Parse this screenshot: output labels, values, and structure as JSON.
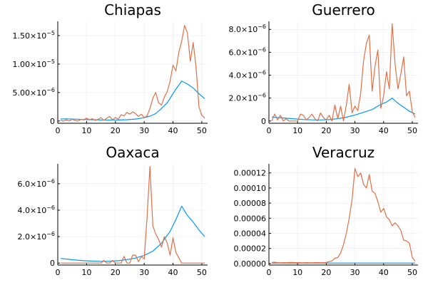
{
  "colors": {
    "series_1": "#009af9",
    "series_2": "#e26f46"
  },
  "chart_data": [
    {
      "type": "line",
      "title": "Chiapas",
      "xlim": [
        0,
        52
      ],
      "ylim": [
        -4e-07,
        1.75e-05
      ],
      "xticks": [
        0,
        10,
        20,
        30,
        40,
        50
      ],
      "xtick_labels": [
        "0",
        "10",
        "20",
        "30",
        "40",
        "50"
      ],
      "yticks": [
        0,
        5e-06,
        1e-05,
        1.5e-05
      ],
      "ytick_labels": [
        {
          "mant": "0",
          "exp": ""
        },
        {
          "mant": "5.00×10",
          "exp": "−6"
        },
        {
          "mant": "1.00×10",
          "exp": "−5"
        },
        {
          "mant": "1.50×10",
          "exp": "−5"
        }
      ],
      "grid": true,
      "series": [
        {
          "x": [
            1,
            3,
            6,
            9,
            12,
            15,
            18,
            21,
            24,
            27,
            30,
            32,
            34,
            36,
            38,
            40,
            41,
            43,
            45,
            47,
            49,
            51
          ],
          "values": [
            3.5e-07,
            3.8e-07,
            3.2e-07,
            2.6e-07,
            2.2e-07,
            1.8e-07,
            1.6e-07,
            1.7e-07,
            2.2e-07,
            3.4e-07,
            5.8e-07,
            8.5e-07,
            1.3e-06,
            2.2e-06,
            3.2e-06,
            4.8e-06,
            5.6e-06,
            7e-06,
            6.5e-06,
            5.8e-06,
            4.8e-06,
            3.9e-06
          ]
        },
        {
          "x": [
            1,
            2,
            3,
            4,
            5,
            6,
            7,
            8,
            9,
            10,
            11,
            12,
            13,
            14,
            15,
            16,
            17,
            18,
            19,
            20,
            21,
            22,
            23,
            24,
            25,
            26,
            27,
            28,
            29,
            30,
            31,
            32,
            33,
            34,
            35,
            36,
            37,
            38,
            39,
            40,
            41,
            42,
            43,
            44,
            45,
            46,
            47,
            48,
            49,
            50,
            51
          ],
          "values": [
            1e-07,
            0,
            2e-07,
            0,
            3e-07,
            1e-07,
            0,
            3e-07,
            2e-07,
            5e-07,
            2e-07,
            4e-07,
            1e-07,
            3e-07,
            6e-07,
            1e-07,
            5e-07,
            8e-07,
            2e-07,
            6e-07,
            3e-07,
            1.1e-06,
            9e-07,
            1.5e-06,
            1.2e-06,
            1.6e-06,
            1.3e-06,
            8e-07,
            1.2e-06,
            6e-07,
            9e-07,
            2.2e-06,
            4e-06,
            5e-06,
            3.2e-06,
            2.8e-06,
            4.2e-06,
            5.2e-06,
            7e-06,
            9.8e-06,
            8.8e-06,
            1.2e-05,
            1.4e-05,
            1.68e-05,
            1.55e-05,
            1.05e-05,
            1.38e-05,
            9.5e-06,
            2.5e-06,
            1e-06,
            5e-07
          ]
        }
      ]
    },
    {
      "type": "line",
      "title": "Guerrero",
      "xlim": [
        0,
        52
      ],
      "ylim": [
        -2e-07,
        8.7e-06
      ],
      "xticks": [
        0,
        10,
        20,
        30,
        40,
        50
      ],
      "xtick_labels": [
        "0",
        "10",
        "20",
        "30",
        "40",
        "50"
      ],
      "yticks": [
        0,
        2e-06,
        4e-06,
        6e-06,
        8e-06
      ],
      "ytick_labels": [
        {
          "mant": "0",
          "exp": ""
        },
        {
          "mant": "2.0×10",
          "exp": "−6"
        },
        {
          "mant": "4.0×10",
          "exp": "−6"
        },
        {
          "mant": "6.0×10",
          "exp": "−6"
        },
        {
          "mant": "8.0×10",
          "exp": "−6"
        }
      ],
      "grid": true,
      "series": [
        {
          "x": [
            1,
            3,
            6,
            9,
            12,
            15,
            18,
            21,
            24,
            27,
            30,
            33,
            36,
            39,
            41,
            43,
            45,
            47,
            49,
            51
          ],
          "values": [
            3.5e-07,
            3e-07,
            2.4e-07,
            1.8e-07,
            1.3e-07,
            1e-07,
            9e-08,
            1.2e-07,
            2e-07,
            3.3e-07,
            5.2e-07,
            7.5e-07,
            1e-06,
            1.45e-06,
            1.65e-06,
            2e-06,
            1.55e-06,
            1.2e-06,
            8.5e-07,
            6e-07
          ]
        },
        {
          "x": [
            1,
            2,
            3,
            4,
            5,
            6,
            7,
            8,
            9,
            10,
            11,
            12,
            13,
            14,
            15,
            16,
            17,
            18,
            19,
            20,
            21,
            22,
            23,
            24,
            25,
            26,
            27,
            28,
            29,
            30,
            31,
            32,
            33,
            34,
            35,
            36,
            37,
            38,
            39,
            40,
            41,
            42,
            43,
            44,
            45,
            46,
            47,
            48,
            49,
            50,
            51
          ],
          "values": [
            0,
            6e-07,
            1e-07,
            5e-07,
            0,
            2e-07,
            0,
            0,
            0,
            0,
            6e-07,
            5e-07,
            1e-07,
            3e-07,
            6e-07,
            2e-07,
            0,
            7e-07,
            3e-07,
            1e-07,
            5e-07,
            0,
            1.4e-06,
            2e-07,
            1.3e-06,
            0,
            1.4e-06,
            3.2e-06,
            7e-07,
            1.3e-06,
            9e-07,
            2.4e-06,
            5.2e-06,
            6.8e-06,
            7.5e-06,
            2.6e-06,
            4.8e-06,
            6.2e-06,
            1.1e-06,
            2.2e-06,
            4.3e-06,
            2.8e-06,
            8.5e-06,
            5e-06,
            2.8e-06,
            4.1e-06,
            5.6e-06,
            2.2e-06,
            2.6e-06,
            8e-07,
            3e-07
          ]
        }
      ]
    },
    {
      "type": "line",
      "title": "Oaxaca",
      "xlim": [
        0,
        52
      ],
      "ylim": [
        -1.5e-07,
        7.5e-06
      ],
      "xticks": [
        0,
        10,
        20,
        30,
        40,
        50
      ],
      "xtick_labels": [
        "0",
        "10",
        "20",
        "30",
        "40",
        "50"
      ],
      "yticks": [
        0,
        2e-06,
        4e-06,
        6e-06
      ],
      "ytick_labels": [
        {
          "mant": "0",
          "exp": ""
        },
        {
          "mant": "2.0×10",
          "exp": "−6"
        },
        {
          "mant": "4.0×10",
          "exp": "−6"
        },
        {
          "mant": "6.0×10",
          "exp": "−6"
        }
      ],
      "grid": true,
      "series": [
        {
          "x": [
            1,
            3,
            6,
            9,
            12,
            15,
            18,
            21,
            24,
            27,
            30,
            33,
            36,
            39,
            41,
            43,
            45,
            47,
            49,
            51
          ],
          "values": [
            3.5e-07,
            3e-07,
            2.3e-07,
            1.8e-07,
            1.5e-07,
            1.3e-07,
            1.4e-07,
            1.8e-07,
            2.6e-07,
            3.8e-07,
            5.8e-07,
            9e-07,
            1.5e-06,
            2.4e-06,
            3.3e-06,
            4.3e-06,
            3.6e-06,
            3.1e-06,
            2.5e-06,
            2e-06
          ]
        },
        {
          "x": [
            1,
            2,
            3,
            4,
            5,
            6,
            7,
            8,
            9,
            10,
            11,
            12,
            13,
            14,
            15,
            16,
            17,
            18,
            19,
            20,
            21,
            22,
            23,
            24,
            25,
            26,
            27,
            28,
            29,
            30,
            31,
            32,
            33,
            34,
            35,
            36,
            37,
            38,
            39,
            40,
            41,
            42,
            43,
            44,
            45,
            46,
            47,
            48,
            49,
            50,
            51
          ],
          "values": [
            0,
            0,
            0,
            0,
            0,
            0,
            0,
            0,
            0,
            0,
            0,
            0,
            0,
            0,
            0,
            2e-07,
            0,
            0,
            2e-07,
            0,
            0,
            0,
            5e-07,
            0,
            0,
            6e-07,
            6e-07,
            1e-07,
            5e-07,
            3e-07,
            3.5e-06,
            7.3e-06,
            2.8e-06,
            2.2e-06,
            1.8e-06,
            1.2e-06,
            2e-06,
            1.5e-06,
            6e-07,
            1.9e-06,
            8e-07,
            4e-07,
            0,
            0,
            0,
            0,
            0,
            0,
            0,
            0,
            0
          ]
        }
      ]
    },
    {
      "type": "line",
      "title": "Veracruz",
      "xlim": [
        0,
        52
      ],
      "ylim": [
        -2e-06,
        0.000132
      ],
      "xticks": [
        0,
        10,
        20,
        30,
        40,
        50
      ],
      "xtick_labels": [
        "0",
        "10",
        "20",
        "30",
        "40",
        "50"
      ],
      "yticks": [
        0,
        2e-05,
        4e-05,
        6e-05,
        8e-05,
        0.0001,
        0.00012
      ],
      "ytick_labels": [
        {
          "mant": "0.00000",
          "exp": ""
        },
        {
          "mant": "0.00002",
          "exp": ""
        },
        {
          "mant": "0.00004",
          "exp": ""
        },
        {
          "mant": "0.00006",
          "exp": ""
        },
        {
          "mant": "0.00008",
          "exp": ""
        },
        {
          "mant": "0.00010",
          "exp": ""
        },
        {
          "mant": "0.00012",
          "exp": ""
        }
      ],
      "grid": true,
      "series": [
        {
          "x": [
            1,
            51
          ],
          "values": [
            6e-07,
            6e-07
          ]
        },
        {
          "x": [
            1,
            2,
            3,
            4,
            5,
            6,
            7,
            8,
            9,
            10,
            11,
            12,
            13,
            14,
            15,
            16,
            17,
            18,
            19,
            20,
            21,
            22,
            23,
            24,
            25,
            26,
            27,
            28,
            29,
            30,
            31,
            32,
            33,
            34,
            35,
            36,
            37,
            38,
            39,
            40,
            41,
            42,
            43,
            44,
            45,
            46,
            47,
            48,
            49,
            50,
            51
          ],
          "values": [
            1.5e-06,
            1.8e-06,
            1.2e-06,
            9e-07,
            1.2e-06,
            1.1e-06,
            1.3e-06,
            1.4e-06,
            1.2e-06,
            1.3e-06,
            1.1e-06,
            1e-06,
            1.2e-06,
            1.1e-06,
            1e-06,
            1.2e-06,
            1.3e-06,
            1.1e-06,
            1.2e-06,
            1.5e-06,
            2.5e-06,
            3.5e-06,
            7e-06,
            8e-06,
            1.4e-05,
            2.5e-05,
            4e-05,
            6e-05,
            8.5e-05,
            0.000126,
            0.000115,
            0.00012,
            0.000105,
            0.0001,
            0.000118,
            9.6e-05,
            9.3e-05,
            8.2e-05,
            6.8e-05,
            7.3e-05,
            6.2e-05,
            5.8e-05,
            5e-05,
            5.4e-05,
            5e-05,
            4.4e-05,
            3.1e-05,
            3e-05,
            2.7e-05,
            8e-06,
            3e-06
          ]
        }
      ]
    }
  ]
}
